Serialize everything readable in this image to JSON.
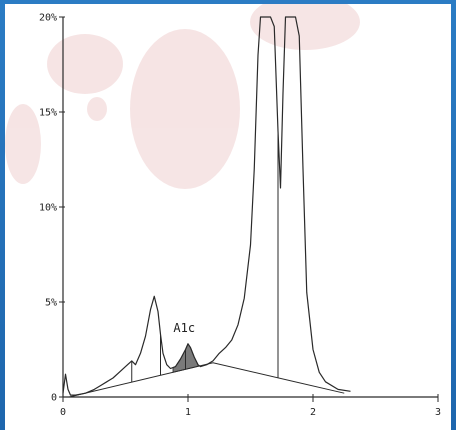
{
  "chart_data": {
    "type": "line",
    "title": "",
    "xlabel": "",
    "ylabel": "",
    "xlim": [
      0,
      3
    ],
    "ylim": [
      0,
      20
    ],
    "x_ticks": [
      {
        "value": 0,
        "label": "0"
      },
      {
        "value": 1,
        "label": "1"
      },
      {
        "value": 2,
        "label": "2"
      },
      {
        "value": 3,
        "label": "3"
      }
    ],
    "y_ticks": [
      {
        "value": 0,
        "label": "0"
      },
      {
        "value": 5,
        "label": "5%"
      },
      {
        "value": 10,
        "label": "10%"
      },
      {
        "value": 15,
        "label": "15%"
      },
      {
        "value": 20,
        "label": "20%"
      }
    ],
    "grid": false,
    "series": [
      {
        "x": [
          0.0,
          0.02,
          0.04,
          0.06,
          0.1,
          0.18,
          0.25,
          0.3,
          0.35,
          0.4,
          0.45,
          0.5,
          0.55,
          0.58,
          0.62,
          0.66,
          0.7,
          0.73,
          0.76,
          0.78,
          0.8,
          0.83,
          0.86,
          0.9,
          0.94,
          0.98,
          1.0,
          1.02,
          1.05,
          1.08,
          1.1,
          1.15,
          1.2,
          1.25,
          1.3,
          1.35,
          1.4,
          1.45,
          1.5,
          1.53,
          1.56,
          1.58,
          1.6,
          1.62,
          1.66,
          1.69,
          1.72,
          1.74,
          1.76,
          1.78,
          1.82,
          1.86,
          1.89,
          1.92,
          1.95,
          2.0,
          2.05,
          2.1,
          2.2,
          2.3
        ],
        "y": [
          0.2,
          1.2,
          0.4,
          0.1,
          0.1,
          0.2,
          0.4,
          0.6,
          0.8,
          1.0,
          1.3,
          1.6,
          1.9,
          1.7,
          2.3,
          3.2,
          4.6,
          5.3,
          4.5,
          3.3,
          2.3,
          1.7,
          1.5,
          1.6,
          2.0,
          2.5,
          2.8,
          2.6,
          2.1,
          1.7,
          1.6,
          1.7,
          1.9,
          2.3,
          2.6,
          3.0,
          3.8,
          5.2,
          8.0,
          12.0,
          18.0,
          20.0,
          20.0,
          20.0,
          20.0,
          19.5,
          14.0,
          11.0,
          16.0,
          20.0,
          20.0,
          20.0,
          19.0,
          12.0,
          5.5,
          2.5,
          1.3,
          0.8,
          0.4,
          0.3
        ]
      }
    ],
    "baseline": {
      "x": [
        0.05,
        1.2,
        2.25
      ],
      "y": [
        0.0,
        1.8,
        0.2
      ]
    },
    "dividers": [
      0.55,
      0.78,
      0.98,
      1.72
    ],
    "hba1c_peak": {
      "x_range": [
        0.88,
        1.08
      ]
    },
    "annotations": [
      {
        "text": "A1c",
        "x": 0.97,
        "y": 3.2
      }
    ],
    "colors": {
      "line": "#2a2a2a",
      "hba1c_fill": "#7a7a7a",
      "frame": "#1f6fb8",
      "background": "#ffffff"
    }
  }
}
